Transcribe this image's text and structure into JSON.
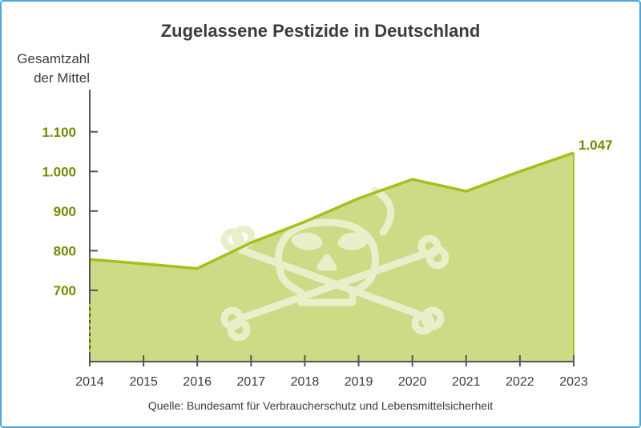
{
  "chart_data": {
    "type": "area",
    "title": "Zugelassene Pestizide in Deutschland",
    "ylabel": [
      "Gesamtzahl",
      "der Mittel"
    ],
    "xlabel": "",
    "x": [
      "2014",
      "2015",
      "2016",
      "2017",
      "2018",
      "2019",
      "2020",
      "2021",
      "2022",
      "2023"
    ],
    "values": [
      778,
      767,
      755,
      820,
      873,
      932,
      980,
      950,
      1000,
      1047
    ],
    "yticks": [
      {
        "value": 700,
        "label": "700"
      },
      {
        "value": 800,
        "label": "800"
      },
      {
        "value": 900,
        "label": "900"
      },
      {
        "value": 1000,
        "label": "1.000"
      },
      {
        "value": 1100,
        "label": "1.100"
      }
    ],
    "ylim": [
      520,
      1150
    ],
    "data_label": {
      "value": 1047,
      "label": "1.047"
    },
    "grid": false,
    "legend": "none",
    "source": "Quelle: Bundesamt für Verbraucherschutz und Lebensmittelsicherheit",
    "watermark_icon": "skull-and-crossbones-icon",
    "colors": {
      "line": "#a3c11c",
      "fill": "#cbdb86",
      "tick_labels": "#6b8e00",
      "text": "#3c3c3c",
      "axis": "#555555",
      "border": "#4aa8dc"
    }
  }
}
